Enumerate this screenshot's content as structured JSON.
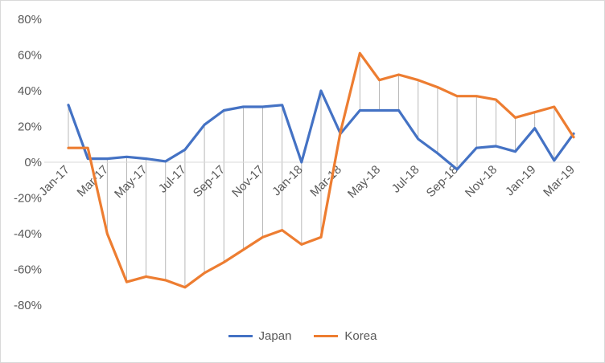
{
  "chart_data": {
    "type": "line",
    "title": "",
    "xlabel": "",
    "ylabel": "",
    "ylim": [
      -0.8,
      0.8
    ],
    "y_tick_values": [
      0.8,
      0.6,
      0.4,
      0.2,
      0.0,
      -0.2,
      -0.4,
      -0.6,
      -0.8
    ],
    "y_tick_labels": [
      "80%",
      "60%",
      "40%",
      "20%",
      "0%",
      "-20%",
      "-40%",
      "-60%",
      "-80%"
    ],
    "x_tick_labels": [
      "Jan-17",
      "Mar-17",
      "May-17",
      "Jul-17",
      "Sep-17",
      "Nov-17",
      "Jan-18",
      "Mar-18",
      "May-18",
      "Jul-18",
      "Sep-18",
      "Nov-18",
      "Jan-19",
      "Mar-19"
    ],
    "categories": [
      "Jan-17",
      "Feb-17",
      "Mar-17",
      "Apr-17",
      "May-17",
      "Jun-17",
      "Jul-17",
      "Aug-17",
      "Sep-17",
      "Oct-17",
      "Nov-17",
      "Dec-17",
      "Jan-18",
      "Feb-18",
      "Mar-18",
      "Apr-18",
      "May-18",
      "Jun-18",
      "Jul-18",
      "Aug-18",
      "Sep-18",
      "Oct-18",
      "Nov-18",
      "Dec-18",
      "Jan-19",
      "Feb-19",
      "Mar-19"
    ],
    "series": [
      {
        "name": "Japan",
        "color": "#4472C4",
        "values": [
          0.32,
          0.02,
          0.02,
          0.03,
          0.02,
          0.005,
          0.07,
          0.21,
          0.29,
          0.31,
          0.31,
          0.32,
          0.0,
          0.4,
          0.16,
          0.29,
          0.29,
          0.29,
          0.13,
          0.05,
          -0.04,
          0.08,
          0.09,
          0.06,
          0.19,
          0.01,
          0.16
        ]
      },
      {
        "name": "Korea",
        "color": "#ED7D31",
        "values": [
          0.08,
          0.08,
          -0.4,
          -0.67,
          -0.64,
          -0.66,
          -0.7,
          -0.62,
          -0.56,
          -0.49,
          -0.42,
          -0.38,
          -0.46,
          -0.42,
          0.17,
          0.61,
          0.46,
          0.49,
          0.46,
          0.42,
          0.37,
          0.37,
          0.35,
          0.25,
          0.28,
          0.31,
          0.14
        ]
      }
    ],
    "drop_lines": true,
    "grid": false,
    "legend_position": "bottom"
  },
  "legend": {
    "items": [
      {
        "label": "Japan",
        "color": "#4472C4"
      },
      {
        "label": "Korea",
        "color": "#ED7D31"
      }
    ]
  }
}
